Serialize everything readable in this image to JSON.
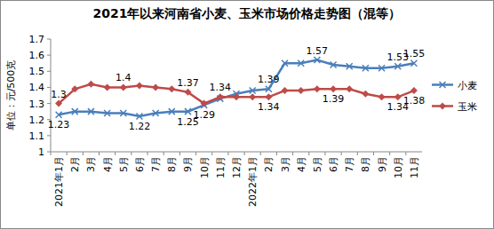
{
  "chart_data": {
    "type": "line",
    "title": "2021年以来河南省小麦、玉米市场价格走势图（混等）",
    "y_label": "单位：元/500克",
    "categories": [
      "2021年1月",
      "2月",
      "3月",
      "4月",
      "5月",
      "6月",
      "7月",
      "8月",
      "9月",
      "10月",
      "11月",
      "12月",
      "2022年1月",
      "2月",
      "3月",
      "4月",
      "5月",
      "6月",
      "7月",
      "8月",
      "9月",
      "10月",
      "11月"
    ],
    "series": [
      {
        "name": "小麦",
        "color": "#4a7ebb",
        "marker": "x",
        "values": [
          1.23,
          1.25,
          1.25,
          1.24,
          1.24,
          1.22,
          1.24,
          1.25,
          1.25,
          1.29,
          1.33,
          1.36,
          1.38,
          1.39,
          1.55,
          1.55,
          1.57,
          1.54,
          1.53,
          1.52,
          1.52,
          1.53,
          1.55
        ],
        "value_labels": [
          "1.23",
          null,
          null,
          null,
          null,
          "1.22",
          null,
          null,
          "1.25",
          "1.29",
          null,
          null,
          null,
          "1.39",
          null,
          null,
          "1.57",
          null,
          null,
          null,
          null,
          "1.53",
          "1.55"
        ]
      },
      {
        "name": "玉米",
        "color": "#be4b48",
        "marker": "diamond",
        "values": [
          1.3,
          1.39,
          1.42,
          1.4,
          1.4,
          1.41,
          1.4,
          1.39,
          1.37,
          1.3,
          1.34,
          1.34,
          1.34,
          1.34,
          1.38,
          1.38,
          1.39,
          1.39,
          1.39,
          1.36,
          1.34,
          1.34,
          1.38
        ],
        "value_labels": [
          "1.3",
          null,
          null,
          null,
          "1.4",
          null,
          null,
          null,
          "1.37",
          null,
          "1.34",
          null,
          null,
          "1.34",
          null,
          null,
          null,
          "1.39",
          null,
          null,
          null,
          "1.34",
          "1.38"
        ]
      }
    ],
    "ylim": [
      1,
      1.7
    ],
    "yticks": [
      1,
      1.1,
      1.2,
      1.3,
      1.4,
      1.5,
      1.6,
      1.7
    ],
    "grid": false,
    "legend": "right",
    "data_labels": true
  }
}
